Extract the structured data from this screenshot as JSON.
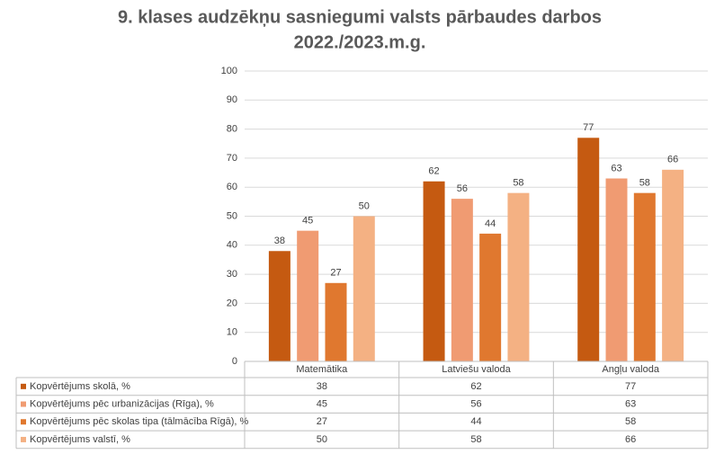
{
  "chart_data": {
    "type": "bar",
    "title": [
      "9. klases audzēkņu sasniegumi valsts pārbaudes darbos",
      "2022./2023.m.g."
    ],
    "categories": [
      "Matemātika",
      "Latviešu valoda",
      "Angļu valoda"
    ],
    "series": [
      {
        "name": "Kopvērtējums skolā, %",
        "color": "#c55a11",
        "values": [
          38,
          62,
          77
        ]
      },
      {
        "name": "Kopvērtējums pēc urbanizācijas (Rīga), %",
        "color": "#f09b72",
        "values": [
          45,
          56,
          63
        ]
      },
      {
        "name": "Kopvērtējums pēc skolas tipa (tālmācība Rīgā), %",
        "color": "#e0782f",
        "values": [
          27,
          44,
          58
        ]
      },
      {
        "name": "Kopvērtējums valstī, %",
        "color": "#f4b183",
        "values": [
          50,
          58,
          66
        ]
      }
    ],
    "ylim": [
      0,
      100
    ],
    "yticks": [
      0,
      10,
      20,
      30,
      40,
      50,
      60,
      70,
      80,
      90,
      100
    ],
    "grid": true
  }
}
